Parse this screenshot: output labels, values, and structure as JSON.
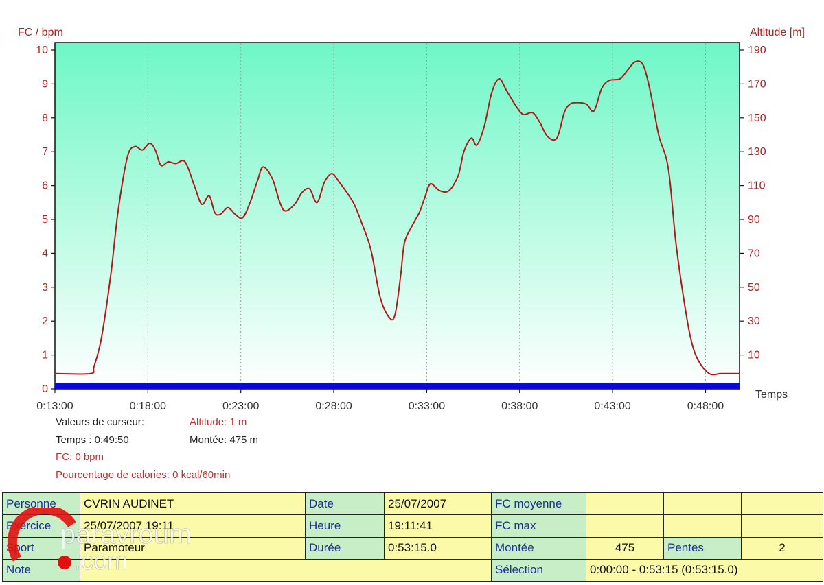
{
  "colors": {
    "line": "#b01818",
    "axis_text": "#b02020",
    "bg_top": "#6ef7c6",
    "bg_bottom": "#ffffff",
    "timeline_bar": "#0a0ad8",
    "label_cell": "#c8eec8",
    "value_cell": "#fafaa8",
    "label_text": "#1a2fa0"
  },
  "chart_data": {
    "type": "line",
    "left_axis_title": "FC / bpm",
    "right_axis_title": "Altitude [m]",
    "x_axis_title": "Temps",
    "left_ylim": [
      0,
      10
    ],
    "left_ticks": [
      "0",
      "1",
      "2",
      "3",
      "4",
      "5",
      "6",
      "7",
      "8",
      "9",
      "10"
    ],
    "right_ylim": [
      -10,
      190
    ],
    "right_ticks": [
      "10",
      "30",
      "50",
      "70",
      "90",
      "110",
      "130",
      "150",
      "170",
      "190"
    ],
    "x_ticks": [
      "0:13:00",
      "0:18:00",
      "0:23:00",
      "0:28:00",
      "0:33:00",
      "0:38:00",
      "0:43:00",
      "0:48:00"
    ],
    "x_tick_minutes": [
      13,
      18,
      23,
      28,
      33,
      38,
      43,
      48
    ],
    "xlim_minutes": [
      13,
      49.83
    ],
    "grid": "vertical dotted",
    "series": [
      {
        "axis": "right",
        "x_minutes": [
          13,
          14.9,
          15.1,
          15.5,
          16.0,
          16.4,
          16.9,
          17.3,
          17.7,
          18.1,
          18.4,
          18.7,
          19.1,
          19.5,
          20.0,
          20.5,
          20.9,
          21.3,
          21.6,
          21.9,
          22.3,
          22.7,
          23.1,
          23.5,
          23.9,
          24.2,
          24.7,
          25.1,
          25.4,
          25.9,
          26.3,
          26.7,
          27.1,
          27.5,
          27.9,
          28.3,
          28.7,
          29.1,
          29.5,
          30.0,
          30.5,
          31.0,
          31.3,
          31.6,
          31.8,
          32.2,
          32.6,
          32.9,
          33.2,
          33.7,
          34.2,
          34.7,
          35.0,
          35.4,
          35.7,
          36.1,
          36.5,
          36.9,
          37.3,
          37.8,
          38.2,
          38.7,
          39.1,
          39.5,
          40.0,
          40.4,
          40.7,
          41.1,
          41.6,
          42.0,
          42.4,
          42.8,
          43.4,
          43.8,
          44.2,
          44.6,
          44.9,
          45.2,
          45.5,
          46.0,
          46.4,
          46.8,
          47.2,
          47.6,
          48.2,
          48.8,
          49.2,
          49.83
        ],
        "values": [
          -1,
          -1,
          3,
          20,
          57,
          95,
          127,
          133,
          131,
          135,
          131,
          122,
          124,
          123,
          124,
          110,
          99,
          104,
          94,
          93,
          97,
          93,
          91,
          100,
          113,
          121,
          114,
          100,
          95,
          99,
          106,
          108,
          100,
          112,
          117,
          112,
          106,
          99,
          88,
          72,
          44,
          32,
          34,
          57,
          76,
          86,
          94,
          103,
          111,
          107,
          107,
          116,
          130,
          138,
          134,
          145,
          165,
          173,
          166,
          157,
          152,
          153,
          147,
          139,
          138,
          153,
          158,
          159,
          158,
          154,
          167,
          172,
          173,
          178,
          183,
          182,
          172,
          156,
          139,
          120,
          77,
          45,
          20,
          7,
          -1,
          -1,
          -1,
          -1
        ]
      }
    ]
  },
  "cursor": {
    "heading": "Valeurs de curseur:",
    "altitude": "Altitude: 1 m",
    "time": "Temps : 0:49:50",
    "climb": "Montée: 475 m",
    "hr": "FC: 0 bpm",
    "calories": "Pourcentage de calories: 0 kcal/60min"
  },
  "info": {
    "person_label": "Personne",
    "person_value": "CVRIN AUDINET",
    "date_label": "Date",
    "date_value": "25/07/2007",
    "fc_avg_label": "FC moyenne",
    "exercise_label": "Exercice",
    "exercise_value": "25/07/2007 19:11",
    "time_label": "Heure",
    "time_value": "19:11:41",
    "fc_max_label": "FC max",
    "sport_label": "Sport",
    "sport_value": "Paramoteur",
    "duration_label": "Durée",
    "duration_value": "0:53:15.0",
    "climb_label": "Montée",
    "climb_value": "475",
    "slopes_label": "Pentes",
    "slopes_value": "2",
    "note_label": "Note",
    "selection_label": "Sélection",
    "selection_value": "0:00:00 - 0:53:15 (0:53:15.0)"
  },
  "watermark": {
    "text_top": "paravroum",
    "text_bottom": ".com"
  }
}
